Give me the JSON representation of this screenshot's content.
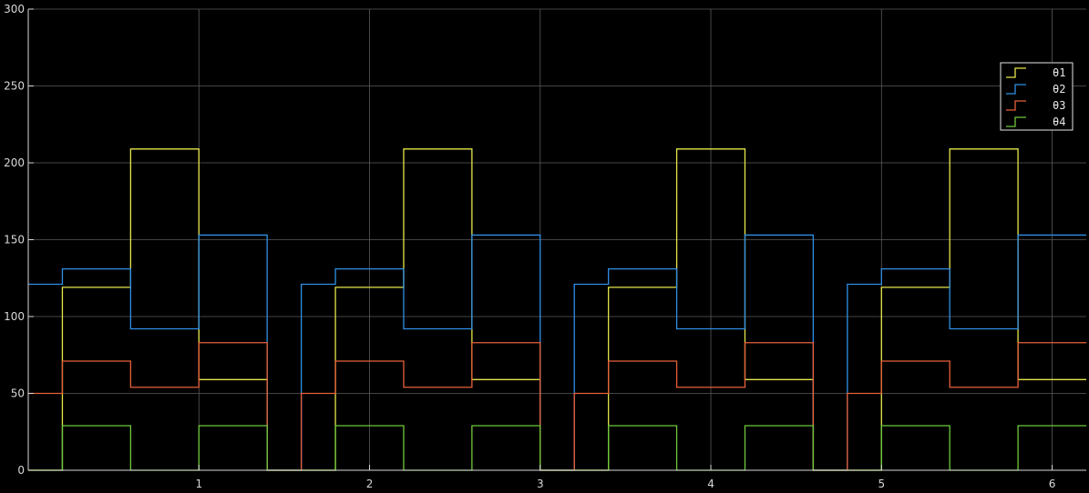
{
  "chart_data": {
    "type": "line",
    "step": true,
    "title": "",
    "xlabel": "",
    "ylabel": "",
    "xlim": [
      0,
      6.2
    ],
    "ylim": [
      0,
      300
    ],
    "xticks": [
      1,
      2,
      3,
      4,
      5,
      6
    ],
    "yticks": [
      0,
      50,
      100,
      150,
      200,
      250,
      300
    ],
    "grid": true,
    "legend": "top-right",
    "background": "#000000",
    "axes_color": "#d8d8d8",
    "grid_color": "#5a5a5a",
    "series": [
      {
        "name": "θ1",
        "color": "#e6e64a",
        "x": [
          0,
          0.2,
          0.6,
          1.0,
          1.4,
          1.6,
          1.8,
          2.2,
          2.6,
          3.0,
          3.2,
          3.4,
          3.8,
          4.2,
          4.6,
          4.8,
          5.0,
          5.4,
          5.8,
          6.2
        ],
        "y": [
          0,
          119,
          209,
          59,
          0,
          0,
          119,
          209,
          59,
          0,
          0,
          119,
          209,
          59,
          0,
          0,
          119,
          209,
          59,
          59
        ]
      },
      {
        "name": "θ2",
        "color": "#2f8fe6",
        "x": [
          0,
          0.2,
          0.6,
          1.0,
          1.4,
          1.6,
          1.8,
          2.2,
          2.6,
          3.0,
          3.2,
          3.4,
          3.8,
          4.2,
          4.6,
          4.8,
          5.0,
          5.4,
          5.8,
          6.2
        ],
        "y": [
          121,
          131,
          92,
          153,
          0,
          121,
          131,
          92,
          153,
          0,
          121,
          131,
          92,
          153,
          0,
          121,
          131,
          92,
          153,
          153
        ]
      },
      {
        "name": "θ3",
        "color": "#e8603a",
        "x": [
          0,
          0.2,
          0.6,
          1.0,
          1.4,
          1.6,
          1.8,
          2.2,
          2.6,
          3.0,
          3.2,
          3.4,
          3.8,
          4.2,
          4.6,
          4.8,
          5.0,
          5.4,
          5.8,
          6.2
        ],
        "y": [
          50,
          71,
          54,
          83,
          0,
          50,
          71,
          54,
          83,
          0,
          50,
          71,
          54,
          83,
          0,
          50,
          71,
          54,
          83,
          83
        ]
      },
      {
        "name": "θ4",
        "color": "#6ec83a",
        "x": [
          0,
          0.2,
          0.6,
          1.0,
          1.4,
          1.6,
          1.8,
          2.2,
          2.6,
          3.0,
          3.2,
          3.4,
          3.8,
          4.2,
          4.6,
          4.8,
          5.0,
          5.4,
          5.8,
          6.2
        ],
        "y": [
          0,
          29,
          0,
          29,
          0,
          0,
          29,
          0,
          29,
          0,
          0,
          29,
          0,
          29,
          0,
          0,
          29,
          0,
          29,
          29
        ]
      }
    ]
  }
}
